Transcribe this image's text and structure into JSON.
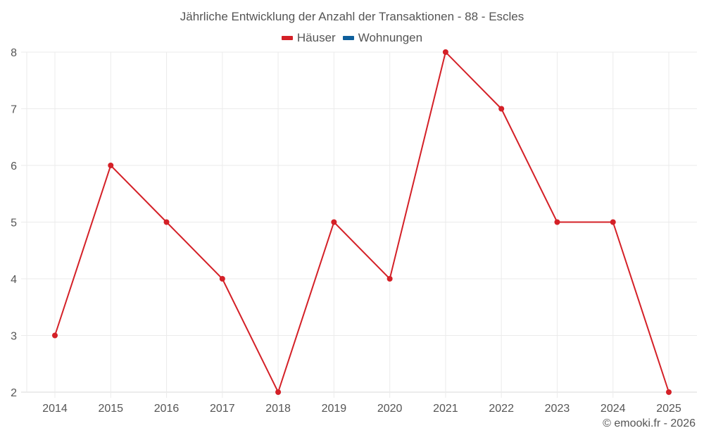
{
  "chart_data": {
    "type": "line",
    "title": "Jährliche Entwicklung der Anzahl der Transaktionen - 88 - Escles",
    "categories": [
      "2014",
      "2015",
      "2016",
      "2017",
      "2018",
      "2019",
      "2020",
      "2021",
      "2022",
      "2023",
      "2024",
      "2025"
    ],
    "series": [
      {
        "name": "Häuser",
        "color": "#d42027",
        "values": [
          3,
          6,
          5,
          4,
          2,
          5,
          4,
          8,
          7,
          5,
          5,
          2
        ]
      },
      {
        "name": "Wohnungen",
        "color": "#0e5f9c",
        "values": []
      }
    ],
    "xlabel": "",
    "ylabel": "",
    "ylim": [
      2,
      8
    ],
    "yticks": [
      2,
      3,
      4,
      5,
      6,
      7,
      8
    ],
    "grid": true,
    "legend_position": "top"
  },
  "credit": "© emooki.fr - 2026"
}
